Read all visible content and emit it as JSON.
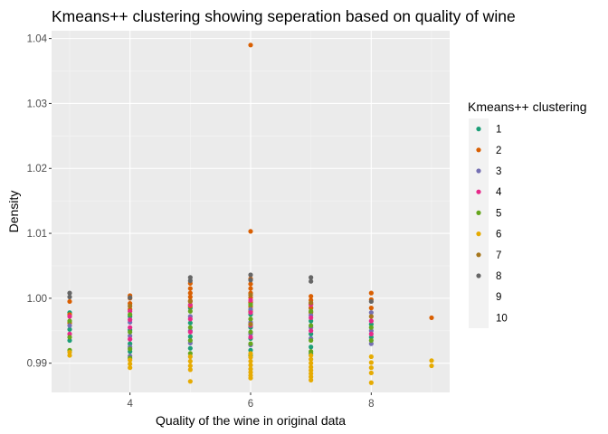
{
  "chart_data": {
    "type": "scatter",
    "title": "Kmeans++ clustering showing seperation based on quality of wine",
    "xlabel": "Quality of the wine in original data",
    "ylabel": "Density",
    "xlim": [
      2.7,
      9.3
    ],
    "ylim": [
      0.9855,
      1.0412
    ],
    "x_ticks": [
      4,
      6,
      8
    ],
    "y_ticks": [
      0.99,
      1.0,
      1.01,
      1.02,
      1.03,
      1.04
    ],
    "y_tick_labels": [
      "0.99",
      "1.00",
      "1.01",
      "1.02",
      "1.03",
      "1.04"
    ],
    "grid": true,
    "legend_position": "right",
    "legend_title": "Kmeans++ clustering",
    "series": [
      {
        "name": "1",
        "color": "#1B9E77",
        "points": [
          [
            3,
            0.9978
          ],
          [
            3,
            0.9952
          ],
          [
            3,
            0.9935
          ],
          [
            4,
            0.9972
          ],
          [
            4,
            0.9951
          ],
          [
            4,
            0.993
          ],
          [
            4,
            0.9918
          ],
          [
            5,
            0.9985
          ],
          [
            5,
            0.9962
          ],
          [
            5,
            0.9941
          ],
          [
            5,
            0.9923
          ],
          [
            6,
            0.9993
          ],
          [
            6,
            0.9975
          ],
          [
            6,
            0.9955
          ],
          [
            6,
            0.9938
          ],
          [
            6,
            0.992
          ],
          [
            7,
            0.9985
          ],
          [
            7,
            0.9965
          ],
          [
            7,
            0.9945
          ],
          [
            7,
            0.9925
          ],
          [
            7,
            0.9915
          ],
          [
            8,
            0.996
          ],
          [
            8,
            0.994
          ]
        ]
      },
      {
        "name": "2",
        "color": "#D95F02",
        "points": [
          [
            3,
            0.9995
          ],
          [
            3,
            0.9975
          ],
          [
            3,
            0.9962
          ],
          [
            4,
            1.0004
          ],
          [
            4,
            1.0
          ],
          [
            4,
            0.9992
          ],
          [
            4,
            0.9983
          ],
          [
            5,
            1.0023
          ],
          [
            5,
            1.0015
          ],
          [
            5,
            1.0008
          ],
          [
            5,
            1.0002
          ],
          [
            5,
            0.9996
          ],
          [
            5,
            0.9988
          ],
          [
            6,
            1.039
          ],
          [
            6,
            1.0103
          ],
          [
            6,
            1.003
          ],
          [
            6,
            1.0022
          ],
          [
            6,
            1.0015
          ],
          [
            6,
            1.0008
          ],
          [
            6,
            1.0001
          ],
          [
            6,
            0.9994
          ],
          [
            6,
            0.9987
          ],
          [
            6,
            0.998
          ],
          [
            7,
            1.0003
          ],
          [
            7,
            0.9997
          ],
          [
            7,
            0.9991
          ],
          [
            7,
            0.9985
          ],
          [
            7,
            0.9978
          ],
          [
            8,
            1.0008
          ],
          [
            8,
            0.9998
          ],
          [
            8,
            0.9985
          ],
          [
            9,
            0.997
          ]
        ]
      },
      {
        "name": "3",
        "color": "#7570B3",
        "points": [
          [
            3,
            0.9958
          ],
          [
            4,
            0.9963
          ],
          [
            4,
            0.9942
          ],
          [
            4,
            0.9925
          ],
          [
            4,
            0.9911
          ],
          [
            5,
            0.9972
          ],
          [
            5,
            0.995
          ],
          [
            5,
            0.9931
          ],
          [
            6,
            0.9983
          ],
          [
            6,
            0.9963
          ],
          [
            6,
            0.9945
          ],
          [
            6,
            0.9928
          ],
          [
            7,
            0.9974
          ],
          [
            7,
            0.9955
          ],
          [
            7,
            0.9938
          ],
          [
            8,
            0.9978
          ],
          [
            8,
            0.995
          ],
          [
            8,
            0.993
          ]
        ]
      },
      {
        "name": "4",
        "color": "#E7298A",
        "points": [
          [
            3,
            0.9972
          ],
          [
            3,
            0.9945
          ],
          [
            4,
            0.998
          ],
          [
            4,
            0.9967
          ],
          [
            4,
            0.9955
          ],
          [
            4,
            0.9937
          ],
          [
            5,
            0.999
          ],
          [
            5,
            0.9968
          ],
          [
            5,
            0.9948
          ],
          [
            6,
            0.9997
          ],
          [
            6,
            0.9978
          ],
          [
            6,
            0.9958
          ],
          [
            6,
            0.994
          ],
          [
            7,
            0.999
          ],
          [
            7,
            0.997
          ],
          [
            7,
            0.995
          ],
          [
            8,
            0.9965
          ],
          [
            8,
            0.9945
          ]
        ]
      },
      {
        "name": "5",
        "color": "#66A61E",
        "points": [
          [
            3,
            0.9965
          ],
          [
            3,
            0.994
          ],
          [
            3,
            0.992
          ],
          [
            4,
            0.9975
          ],
          [
            4,
            0.9948
          ],
          [
            4,
            0.9922
          ],
          [
            4,
            0.9908
          ],
          [
            5,
            0.998
          ],
          [
            5,
            0.9955
          ],
          [
            5,
            0.9935
          ],
          [
            5,
            0.9915
          ],
          [
            6,
            0.999
          ],
          [
            6,
            0.9968
          ],
          [
            6,
            0.9948
          ],
          [
            6,
            0.993
          ],
          [
            6,
            0.9912
          ],
          [
            7,
            0.998
          ],
          [
            7,
            0.9958
          ],
          [
            7,
            0.9935
          ],
          [
            7,
            0.9918
          ],
          [
            8,
            0.9955
          ],
          [
            8,
            0.9935
          ]
        ]
      },
      {
        "name": "6",
        "color": "#E6AB02",
        "points": [
          [
            3,
            0.9912
          ],
          [
            3,
            0.9917
          ],
          [
            4,
            0.9893
          ],
          [
            4,
            0.9899
          ],
          [
            4,
            0.9905
          ],
          [
            5,
            0.9872
          ],
          [
            5,
            0.989
          ],
          [
            5,
            0.9896
          ],
          [
            5,
            0.9903
          ],
          [
            5,
            0.991
          ],
          [
            6,
            0.9877
          ],
          [
            6,
            0.9881
          ],
          [
            6,
            0.9886
          ],
          [
            6,
            0.9891
          ],
          [
            6,
            0.9897
          ],
          [
            6,
            0.9903
          ],
          [
            6,
            0.9909
          ],
          [
            6,
            0.9915
          ],
          [
            7,
            0.9874
          ],
          [
            7,
            0.9879
          ],
          [
            7,
            0.9884
          ],
          [
            7,
            0.9889
          ],
          [
            7,
            0.9894
          ],
          [
            7,
            0.99
          ],
          [
            7,
            0.9906
          ],
          [
            7,
            0.9912
          ],
          [
            8,
            0.987
          ],
          [
            8,
            0.9885
          ],
          [
            8,
            0.9893
          ],
          [
            8,
            0.9901
          ],
          [
            8,
            0.991
          ],
          [
            9,
            0.9896
          ],
          [
            9,
            0.9904
          ]
        ]
      },
      {
        "name": "7",
        "color": "#A6761D",
        "points": [
          [
            4,
            0.9988
          ],
          [
            5,
            0.9995
          ],
          [
            6,
            1.0005
          ],
          [
            6,
            0.996
          ],
          [
            7,
            0.9993
          ],
          [
            8,
            0.9972
          ]
        ]
      },
      {
        "name": "8",
        "color": "#666666",
        "points": [
          [
            3,
            1.0008
          ],
          [
            3,
            1.0002
          ],
          [
            4,
            1.0001
          ],
          [
            5,
            1.0032
          ],
          [
            5,
            1.0027
          ],
          [
            6,
            1.0036
          ],
          [
            6,
            1.0028
          ],
          [
            7,
            1.0032
          ],
          [
            7,
            1.0026
          ],
          [
            8,
            0.9995
          ]
        ]
      },
      {
        "name": "9",
        "color": "",
        "points": []
      },
      {
        "name": "10",
        "color": "",
        "points": []
      }
    ]
  }
}
